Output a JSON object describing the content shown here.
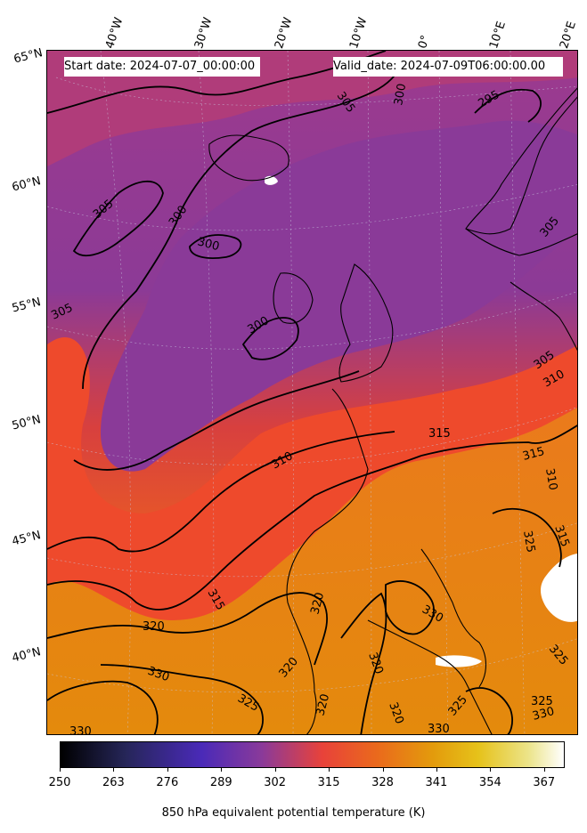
{
  "header": {
    "start_date": "Start date: 2024-07-07_00:00:00",
    "valid_date": "Valid_date: 2024-07-09T06:00:00.00"
  },
  "map": {
    "projection": "lambert-conformal",
    "region": "North Atlantic and Europe",
    "grid_lines": "on",
    "longitude_labels": [
      "40°W",
      "30°W",
      "20°W",
      "10°W",
      "0°",
      "10°E",
      "20°E"
    ],
    "latitude_labels": [
      "65°N",
      "60°N",
      "55°N",
      "50°N",
      "45°N",
      "40°N"
    ],
    "contour_labels": [
      {
        "text": "305"
      },
      {
        "text": "300"
      },
      {
        "text": "295"
      },
      {
        "text": "305"
      },
      {
        "text": "300"
      },
      {
        "text": "300"
      },
      {
        "text": "305"
      },
      {
        "text": "305"
      },
      {
        "text": "300"
      },
      {
        "text": "305"
      },
      {
        "text": "310"
      },
      {
        "text": "315"
      },
      {
        "text": "310"
      },
      {
        "text": "315"
      },
      {
        "text": "315"
      },
      {
        "text": "310"
      },
      {
        "text": "325"
      },
      {
        "text": "315"
      },
      {
        "text": "320"
      },
      {
        "text": "320"
      },
      {
        "text": "330"
      },
      {
        "text": "320"
      },
      {
        "text": "320"
      },
      {
        "text": "320"
      },
      {
        "text": "325"
      },
      {
        "text": "330"
      },
      {
        "text": "325"
      },
      {
        "text": "325"
      },
      {
        "text": "330"
      },
      {
        "text": "330"
      },
      {
        "text": "320"
      },
      {
        "text": "325"
      },
      {
        "text": "330"
      }
    ]
  },
  "colorbar": {
    "ticks": [
      "250",
      "263",
      "276",
      "289",
      "302",
      "315",
      "328",
      "341",
      "354",
      "367"
    ],
    "range": [
      250,
      372
    ],
    "colormap": "CMRmap",
    "label": "850 hPa equivalent potential temperature (K)"
  },
  "colors": {
    "cold": "#8a3a98",
    "mid": "#e8422e",
    "warm": "#e5840e",
    "contour": "#000000"
  }
}
